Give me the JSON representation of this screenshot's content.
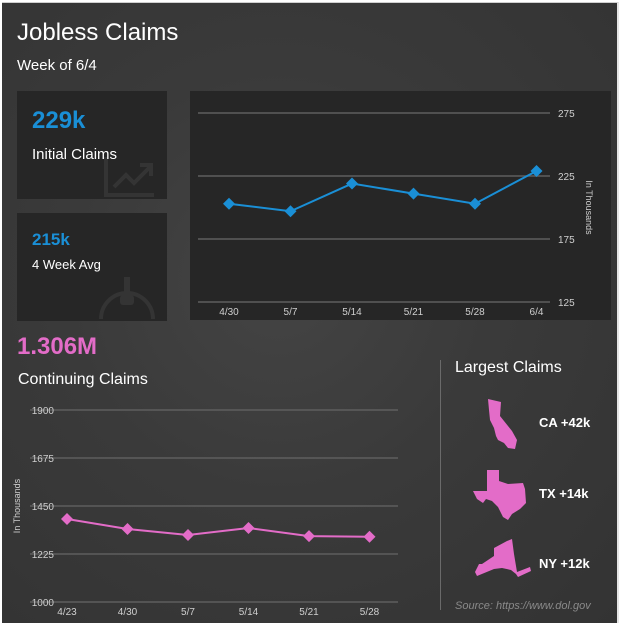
{
  "header": {
    "title": "Jobless Claims",
    "subtitle": "Week of 6/4"
  },
  "kpis": {
    "initial": {
      "value": "229k",
      "label": "Initial Claims",
      "icon": "trend-up-icon"
    },
    "avg": {
      "value": "215k",
      "label": "4 Week Avg",
      "icon": "gauge-icon"
    }
  },
  "continuing": {
    "value": "1.306M",
    "label": "Continuing Claims"
  },
  "largest": {
    "title": "Largest Claims",
    "states": [
      {
        "state": "CA",
        "label": "CA +42k",
        "icon": "california-icon"
      },
      {
        "state": "TX",
        "label": "TX +14k",
        "icon": "texas-icon"
      },
      {
        "state": "NY",
        "label": "NY +12k",
        "icon": "new-york-icon"
      }
    ],
    "source": "Source: https://www.dol.gov"
  },
  "colors": {
    "blue": "#1a8fd6",
    "pink": "#e36cc8",
    "panel": "#262626",
    "background": "#3a3a3a"
  },
  "chart_data": [
    {
      "type": "line",
      "title": "Initial Claims",
      "categories": [
        "4/30",
        "5/7",
        "5/14",
        "5/21",
        "5/28",
        "6/4"
      ],
      "values": [
        203,
        197,
        219,
        211,
        203,
        229
      ],
      "ylabel": "In Thousands",
      "ylim": [
        125,
        275
      ],
      "yticks": [
        "125",
        "175",
        "225",
        "275"
      ],
      "marker": "diamond",
      "axis_position": "right",
      "grid": true
    },
    {
      "type": "line",
      "title": "Continuing Claims",
      "categories": [
        "4/23",
        "4/30",
        "5/7",
        "5/14",
        "5/21",
        "5/28"
      ],
      "values": [
        1389,
        1342,
        1314,
        1347,
        1309,
        1306
      ],
      "ylabel": "In Thousands",
      "ylim": [
        1000,
        1900
      ],
      "yticks": [
        "1000",
        "1225",
        "1450",
        "1675",
        "1900"
      ],
      "marker": "diamond",
      "axis_position": "left",
      "grid": true
    }
  ]
}
